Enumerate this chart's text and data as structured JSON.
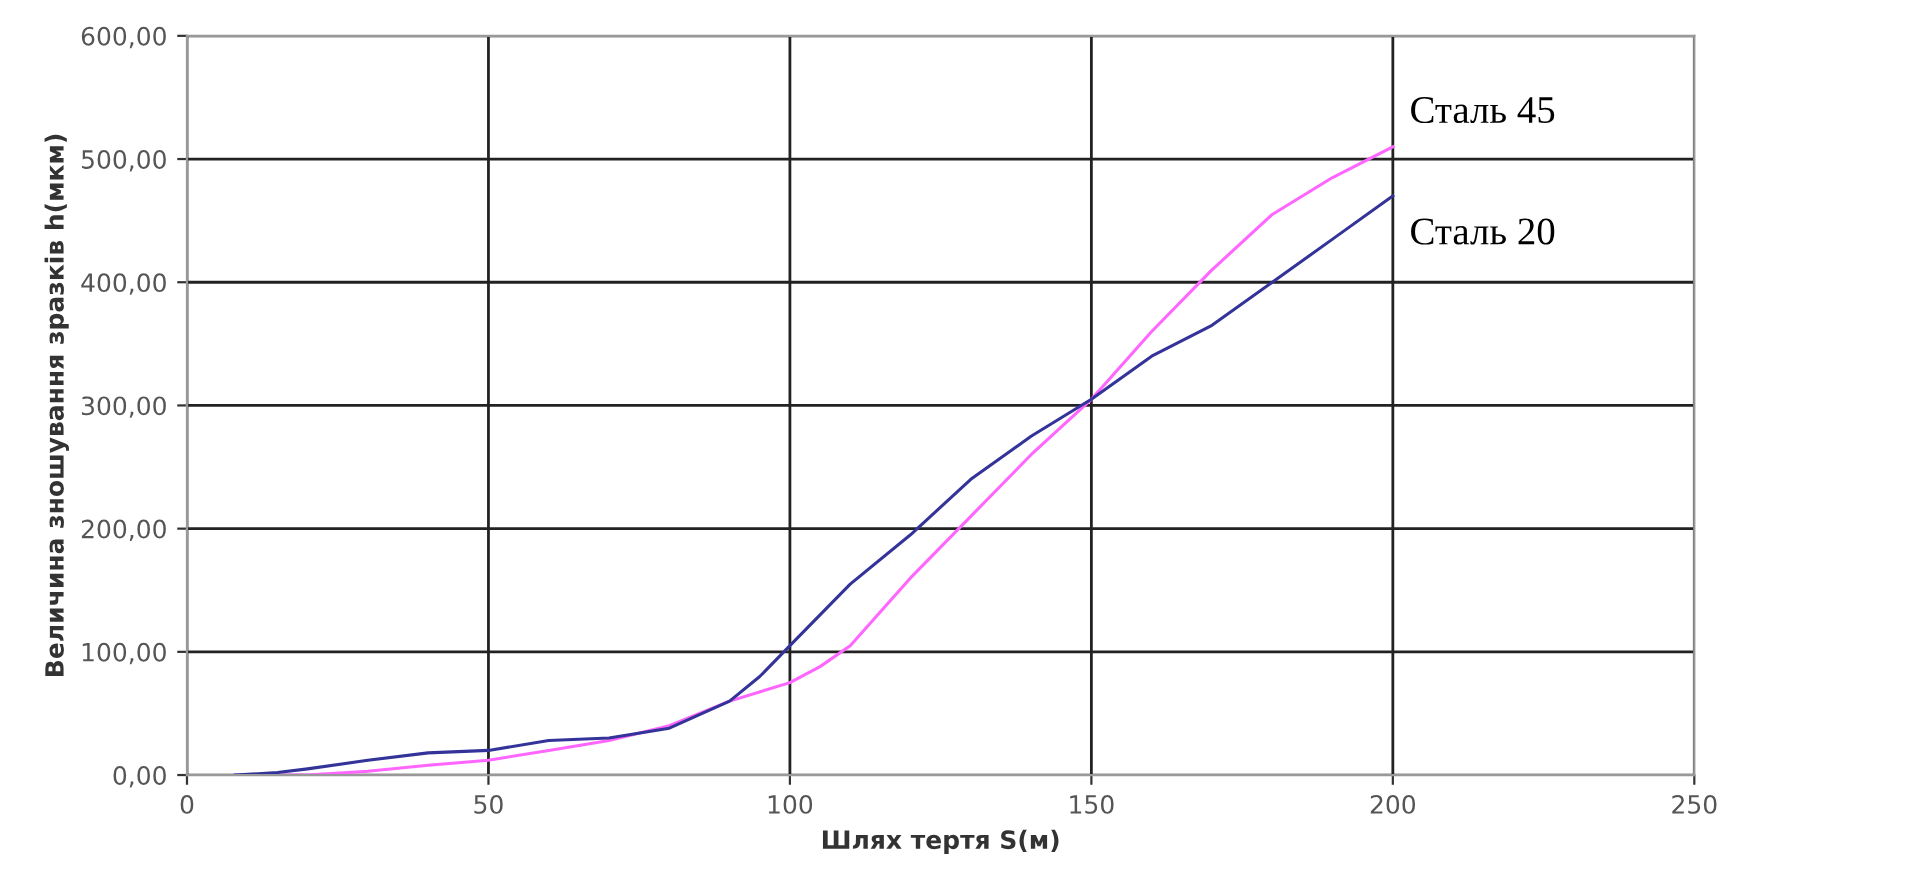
{
  "chart_data": {
    "type": "line",
    "xlabel": "Шлях тертя S(м)",
    "ylabel": "Величина зношування зразків h(мкм)",
    "xlim": [
      0,
      250
    ],
    "xticks": [
      0,
      50,
      100,
      150,
      200,
      250
    ],
    "ylim": [
      0,
      600
    ],
    "yticks": [
      {
        "value": 0,
        "label": "0,00"
      },
      {
        "value": 100,
        "label": "100,00"
      },
      {
        "value": 200,
        "label": "200,00"
      },
      {
        "value": 300,
        "label": "300,00"
      },
      {
        "value": 400,
        "label": "400,00"
      },
      {
        "value": 500,
        "label": "500,00"
      },
      {
        "value": 600,
        "label": "600,00"
      }
    ],
    "grid": true,
    "legend": false,
    "marker": "none",
    "line_style": "solid",
    "series": [
      {
        "name": "Сталь 45",
        "color": "#ff66ff",
        "x": [
          8,
          20,
          30,
          40,
          50,
          60,
          70,
          80,
          90,
          100,
          105,
          110,
          120,
          130,
          140,
          150,
          160,
          170,
          180,
          190,
          200
        ],
        "values": [
          0,
          0,
          3,
          8,
          12,
          20,
          28,
          40,
          60,
          75,
          88,
          105,
          160,
          210,
          260,
          305,
          360,
          410,
          455,
          485,
          510
        ]
      },
      {
        "name": "Сталь 20",
        "color": "#333399",
        "x": [
          8,
          15,
          20,
          30,
          40,
          50,
          60,
          70,
          80,
          90,
          95,
          100,
          110,
          120,
          130,
          140,
          150,
          160,
          170,
          180,
          190,
          200
        ],
        "values": [
          0,
          2,
          5,
          12,
          18,
          20,
          28,
          30,
          38,
          60,
          80,
          105,
          155,
          195,
          240,
          275,
          305,
          340,
          365,
          400,
          435,
          470
        ]
      }
    ]
  }
}
